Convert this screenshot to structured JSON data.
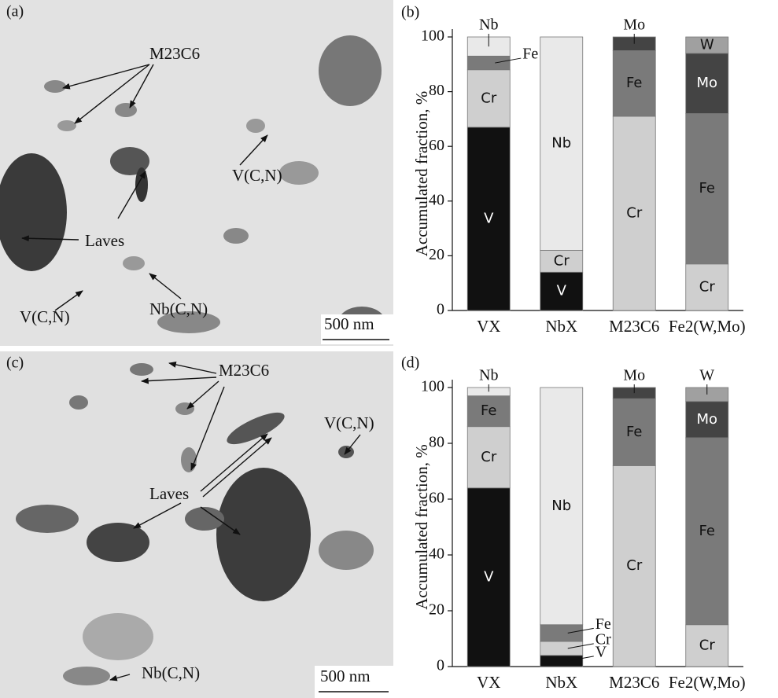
{
  "micrographs": [
    {
      "label": "(a)",
      "annotations": [
        "M23C6",
        "V(C,N)",
        "Laves",
        "V(C,N)",
        "Nb(C,N)"
      ],
      "scale_bar": "500 nm"
    },
    {
      "label": "(c)",
      "annotations": [
        "M23C6",
        "V(C,N)",
        "Laves",
        "Nb(C,N)"
      ],
      "scale_bar": "500 nm"
    }
  ],
  "chart_data": [
    {
      "type": "bar",
      "stacked": true,
      "panel_label": "(b)",
      "ylabel": "Accumulated fraction, %",
      "categories": [
        "VX",
        "NbX",
        "M23C6",
        "Fe2(W,Mo)"
      ],
      "series": [
        {
          "name": "V",
          "color": "#111111",
          "values": [
            67,
            14,
            null,
            null
          ]
        },
        {
          "name": "Cr",
          "color": "#cfcfcf",
          "values": [
            21,
            8,
            71,
            17
          ]
        },
        {
          "name": "Fe",
          "color": "#7a7a7a",
          "values": [
            5,
            null,
            24,
            55
          ]
        },
        {
          "name": "Nb",
          "color": "#e9e9e9",
          "values": [
            7,
            78,
            null,
            null
          ]
        },
        {
          "name": "Mo",
          "color": "#444444",
          "values": [
            null,
            null,
            5,
            22
          ]
        },
        {
          "name": "W",
          "color": "#a0a0a0",
          "values": [
            null,
            null,
            null,
            6
          ]
        }
      ],
      "ylim": [
        0,
        100
      ],
      "yticks": [
        0,
        20,
        40,
        60,
        80,
        100
      ]
    },
    {
      "type": "bar",
      "stacked": true,
      "panel_label": "(d)",
      "ylabel": "Accumulated fraction, %",
      "categories": [
        "VX",
        "NbX",
        "M23C6",
        "Fe2(W,Mo)"
      ],
      "series": [
        {
          "name": "V",
          "color": "#111111",
          "values": [
            64,
            4,
            null,
            null
          ]
        },
        {
          "name": "Cr",
          "color": "#cfcfcf",
          "values": [
            22,
            5,
            72,
            15
          ]
        },
        {
          "name": "Fe",
          "color": "#7a7a7a",
          "values": [
            11,
            6,
            24,
            67
          ]
        },
        {
          "name": "Nb",
          "color": "#e9e9e9",
          "values": [
            3,
            85,
            null,
            null
          ]
        },
        {
          "name": "Mo",
          "color": "#444444",
          "values": [
            null,
            null,
            4,
            13
          ]
        },
        {
          "name": "W",
          "color": "#a0a0a0",
          "values": [
            null,
            null,
            null,
            5
          ]
        }
      ],
      "ylim": [
        0,
        100
      ],
      "yticks": [
        0,
        20,
        40,
        60,
        80,
        100
      ]
    }
  ]
}
